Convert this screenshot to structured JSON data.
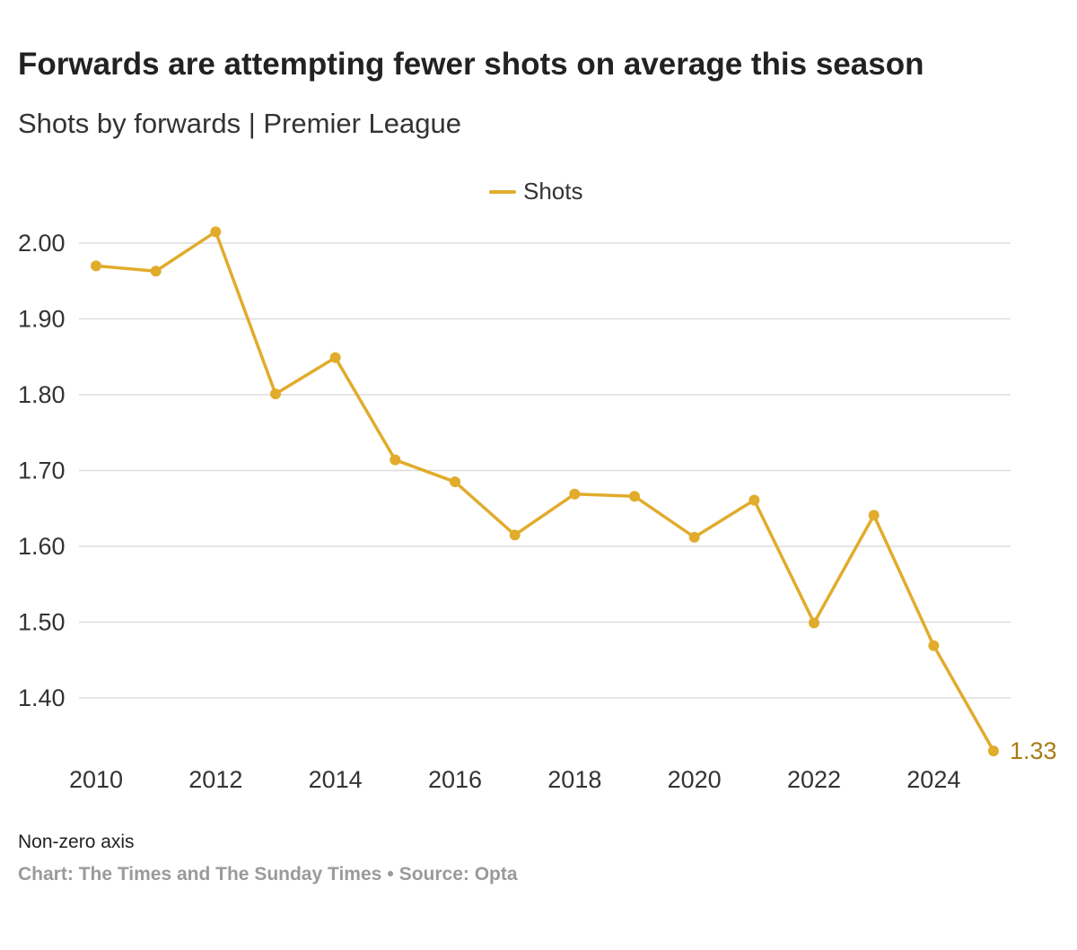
{
  "chart_data": {
    "type": "line",
    "title": "Forwards are attempting fewer shots on average this season",
    "subtitle": "Shots by forwards | Premier League",
    "xlabel": "",
    "ylabel": "",
    "x": [
      2010,
      2011,
      2012,
      2013,
      2014,
      2015,
      2016,
      2017,
      2018,
      2019,
      2020,
      2021,
      2022,
      2023,
      2024,
      2025
    ],
    "series": [
      {
        "name": "Shots",
        "color": "#e1ac2c",
        "values": [
          1.97,
          1.963,
          2.015,
          1.801,
          1.849,
          1.714,
          1.685,
          1.615,
          1.669,
          1.666,
          1.612,
          1.661,
          1.499,
          1.641,
          1.469,
          1.33
        ]
      }
    ],
    "end_label": "1.33",
    "end_label_color": "#a97b14",
    "xlim": [
      2010,
      2025
    ],
    "ylim": [
      1.3,
      2.04
    ],
    "x_ticks": [
      2010,
      2012,
      2014,
      2016,
      2018,
      2020,
      2022,
      2024
    ],
    "y_ticks": [
      1.4,
      1.5,
      1.6,
      1.7,
      1.8,
      1.9,
      2.0
    ],
    "y_tick_labels": [
      "1.40",
      "1.50",
      "1.60",
      "1.70",
      "1.80",
      "1.90",
      "2.00"
    ],
    "grid": true,
    "legend": "top-center",
    "note": "Non-zero axis",
    "credit": "Chart: The Times and The Sunday Times",
    "separator": "•",
    "source": "Source: Opta"
  }
}
